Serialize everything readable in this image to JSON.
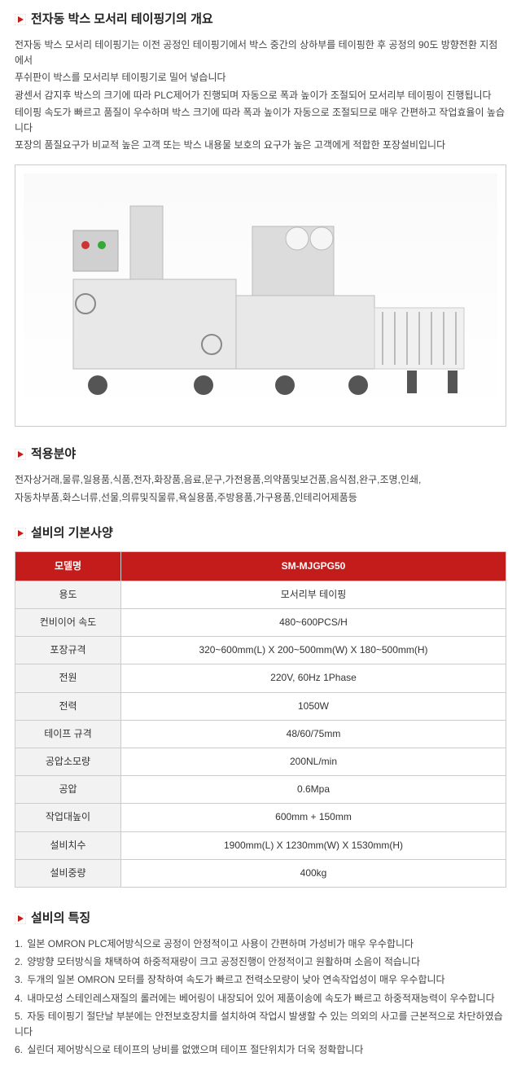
{
  "colors": {
    "header_bg": "#c41b1b",
    "header_text": "#ffffff",
    "label_bg": "#f2f2f2",
    "border": "#cccccc",
    "arrow_border": "#e0e0e0",
    "arrow_fill": "#c41b1b",
    "text": "#444444"
  },
  "overview": {
    "title": "전자동 박스 모서리 테이핑기의 개요",
    "lines": [
      "전자동 박스 모서리 테이핑기는 이전 공정인 테이핑기에서 박스 중간의 상하부를 테이핑한 후 공정의 90도 방향전환 지점에서",
      "푸쉬판이 박스를 모서리부 테이핑기로 밀어 넣습니다",
      "광센서 감지후 박스의 크기에 따라 PLC제어가 진행되며 자동으로 폭과 높이가 조절되어 모서리부 테이핑이 진행됩니다",
      "테이핑 속도가 빠르고 품질이 우수하며 박스 크기에 따라 폭과 높이가 자동으로 조절되므로 매우 간편하고 작업효율이 높습니다",
      "포장의 품질요구가 비교적 높은 고객 또는 박스 내용물 보호의 요구가 높은 고객에게 적합한 포장설비입니다"
    ]
  },
  "application": {
    "title": "적용분야",
    "lines": [
      "전자상거래,물류,일용품,식품,전자,화장품,음료,문구,가전용품,의약품및보건품,음식점,완구,조명,인쇄,",
      "자동차부품,화스너류,선물,의류및직물류,욕실용품,주방용품,가구용품,인테리어제품등"
    ]
  },
  "spec": {
    "title": "설비의 기본사양",
    "header": {
      "col1": "모델명",
      "col2": "SM-MJGPG50"
    },
    "rows": [
      {
        "label": "용도",
        "value": "모서리부 테이핑"
      },
      {
        "label": "컨비이어 속도",
        "value": "480~600PCS/H"
      },
      {
        "label": "포장규격",
        "value": "320~600mm(L) X 200~500mm(W) X 180~500mm(H)"
      },
      {
        "label": "전원",
        "value": "220V, 60Hz 1Phase"
      },
      {
        "label": "전력",
        "value": "1050W"
      },
      {
        "label": "테이프 규격",
        "value": "48/60/75mm"
      },
      {
        "label": "공압소모량",
        "value": "200NL/min"
      },
      {
        "label": "공압",
        "value": "0.6Mpa"
      },
      {
        "label": "작업대높이",
        "value": "600mm + 150mm"
      },
      {
        "label": "설비치수",
        "value": "1900mm(L) X 1230mm(W) X 1530mm(H)"
      },
      {
        "label": "설비중량",
        "value": "400kg"
      }
    ]
  },
  "features": {
    "title": "설비의 특징",
    "items": [
      "일본 OMRON PLC제어방식으로 공정이 안정적이고 사용이 간편하며 가성비가 매우 우수합니다",
      "양방향 모터방식을 채택하여 하중적재량이 크고 공정진행이 안정적이고 원활하며 소음이 적습니다",
      "두개의 일본 OMRON 모터를 장착하여 속도가 빠르고 전력소모량이 낮아 연속작업성이 매우 우수합니다",
      "내마모성 스테인레스재질의 롤러에는 베어링이 내장되어 있어 제품이송에 속도가 빠르고 하중적재능력이 우수합니다",
      "자동 테이핑기 절단날 부분에는 안전보호장치를 설치하여 작업시 발생할 수 있는 의외의 사고를 근본적으로 차단하였습니다",
      "실린더 제어방식으로 테이프의 낭비를 없앴으며 테이프 절단위치가 더욱 정확합니다"
    ]
  }
}
